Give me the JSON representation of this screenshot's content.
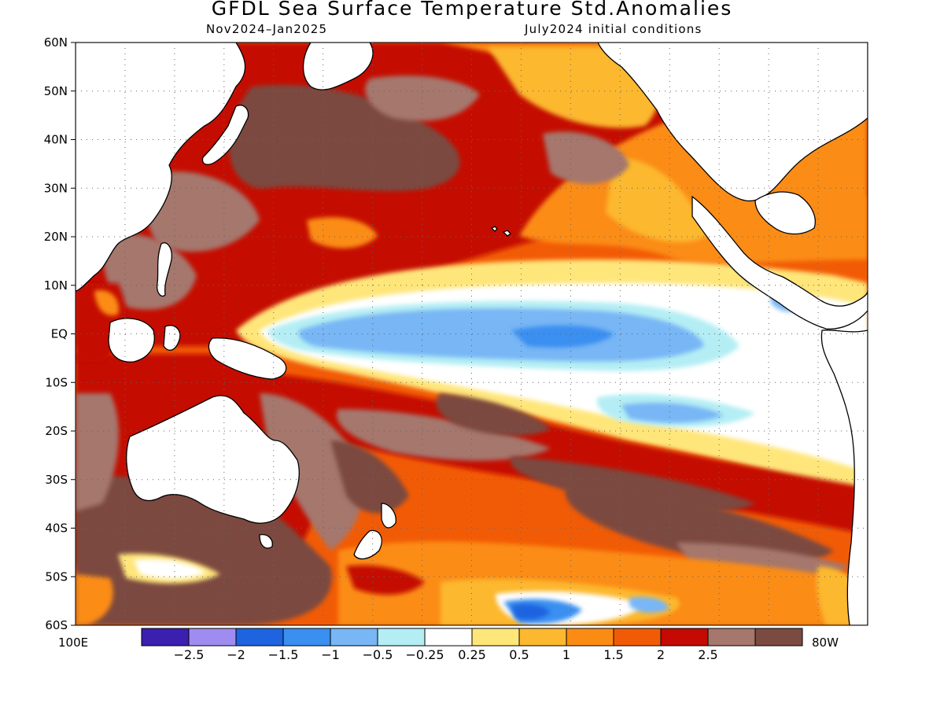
{
  "title": "GFDL Sea Surface Temperature Std.Anomalies",
  "subtitle_left": "Nov2024–Jan2025",
  "subtitle_right": "July2024 initial conditions",
  "lat_labels": [
    "60N",
    "50N",
    "40N",
    "30N",
    "20N",
    "10N",
    "EQ",
    "10S",
    "20S",
    "30S",
    "40S",
    "50S",
    "60S"
  ],
  "lon_left_label": "100E",
  "lon_right_label": "80W",
  "colorbar": {
    "colors": [
      "#3b1fae",
      "#9f8cf0",
      "#1e63e0",
      "#3a8ff0",
      "#78b6f5",
      "#b4eef4",
      "#ffffff",
      "#ffe67a",
      "#fcb82e",
      "#fb8c13",
      "#f25b05",
      "#c40a02",
      "#a5776d",
      "#7b4a40"
    ],
    "tick_labels": [
      "-2.5",
      "-2",
      "-1.5",
      "-1",
      "-0.5",
      "-0.25",
      "0.25",
      "0.5",
      "1",
      "1.5",
      "2",
      "2.5"
    ]
  },
  "map_colors": {
    "deep_brown": "#7b4a40",
    "light_brown": "#a5776d",
    "dark_red": "#c40a02",
    "orange_red": "#f25b05",
    "orange": "#fb8c13",
    "light_orange": "#fcb82e",
    "yellow": "#ffe67a",
    "white": "#ffffff",
    "cyan": "#b4eef4",
    "light_blue": "#78b6f5",
    "mid_blue": "#3a8ff0",
    "blue": "#1e63e0"
  }
}
